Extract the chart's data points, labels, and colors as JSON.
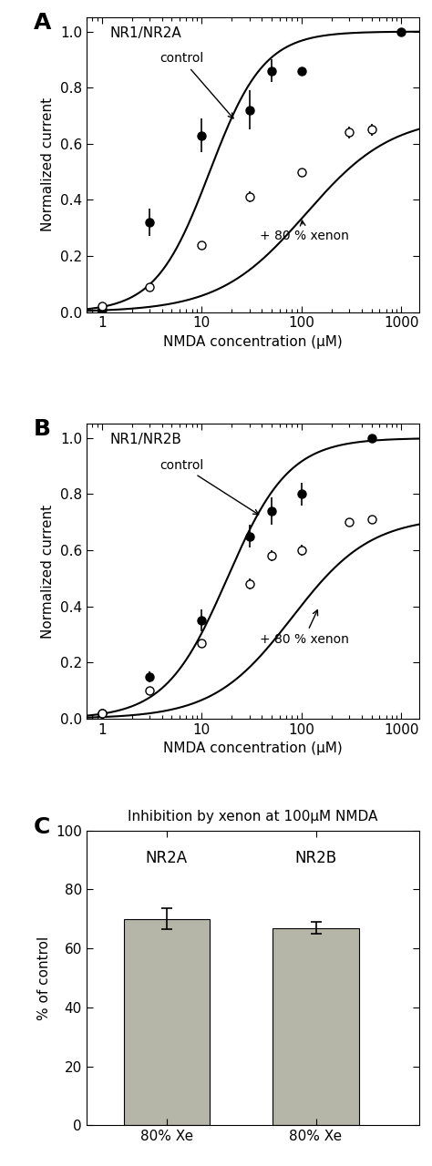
{
  "panel_A": {
    "label": "A",
    "subtitle": "NR1/NR2A",
    "control_x": [
      1,
      3,
      10,
      30,
      50,
      100,
      1000
    ],
    "control_y": [
      0.01,
      0.32,
      0.63,
      0.72,
      0.86,
      0.86,
      1.0
    ],
    "control_yerr": [
      0.0,
      0.05,
      0.06,
      0.07,
      0.04,
      0.0,
      0.0
    ],
    "xenon_x": [
      1,
      3,
      10,
      30,
      100,
      300,
      500
    ],
    "xenon_y": [
      0.02,
      0.09,
      0.24,
      0.41,
      0.5,
      0.64,
      0.65
    ],
    "xenon_yerr": [
      0.0,
      0.0,
      0.0,
      0.02,
      0.0,
      0.02,
      0.02
    ],
    "ctrl_ec50": 12.0,
    "ctrl_hill": 1.6,
    "ctrl_max": 1.0,
    "xen_ec50": 110.0,
    "xen_hill": 1.0,
    "xen_max": 0.7
  },
  "panel_B": {
    "label": "B",
    "subtitle": "NR1/NR2B",
    "control_x": [
      1,
      3,
      10,
      30,
      50,
      100,
      500
    ],
    "control_y": [
      0.02,
      0.15,
      0.35,
      0.65,
      0.74,
      0.8,
      1.0
    ],
    "control_yerr": [
      0.0,
      0.02,
      0.04,
      0.04,
      0.05,
      0.04,
      0.0
    ],
    "xenon_x": [
      1,
      3,
      10,
      30,
      50,
      100,
      300,
      500
    ],
    "xenon_y": [
      0.02,
      0.1,
      0.27,
      0.48,
      0.58,
      0.6,
      0.7,
      0.71
    ],
    "xenon_yerr": [
      0.0,
      0.0,
      0.0,
      0.02,
      0.02,
      0.02,
      0.01,
      0.01
    ],
    "ctrl_ec50": 18.0,
    "ctrl_hill": 1.4,
    "ctrl_max": 1.0,
    "xen_ec50": 80.0,
    "xen_hill": 1.1,
    "xen_max": 0.72
  },
  "panel_C": {
    "label": "C",
    "title": "Inhibition by xenon at 100μM NMDA",
    "categories": [
      "NR2A",
      "NR2B"
    ],
    "bar_labels": [
      "80% Xe",
      "80% Xe"
    ],
    "bar_values": [
      70.0,
      67.0
    ],
    "bar_errors": [
      3.5,
      2.0
    ],
    "bar_color": "#b5b5a8",
    "ylabel": "% of control",
    "ylim": [
      0,
      100
    ],
    "yticks": [
      0,
      20,
      40,
      60,
      80,
      100
    ]
  },
  "xlabel": "NMDA concentration (μM)",
  "ylabel": "Normalized current",
  "xlim_log": [
    0.7,
    1500
  ],
  "xticks": [
    1,
    10,
    100,
    1000
  ],
  "ylim": [
    0.0,
    1.05
  ],
  "yticks": [
    0.0,
    0.2,
    0.4,
    0.6,
    0.8,
    1.0
  ]
}
